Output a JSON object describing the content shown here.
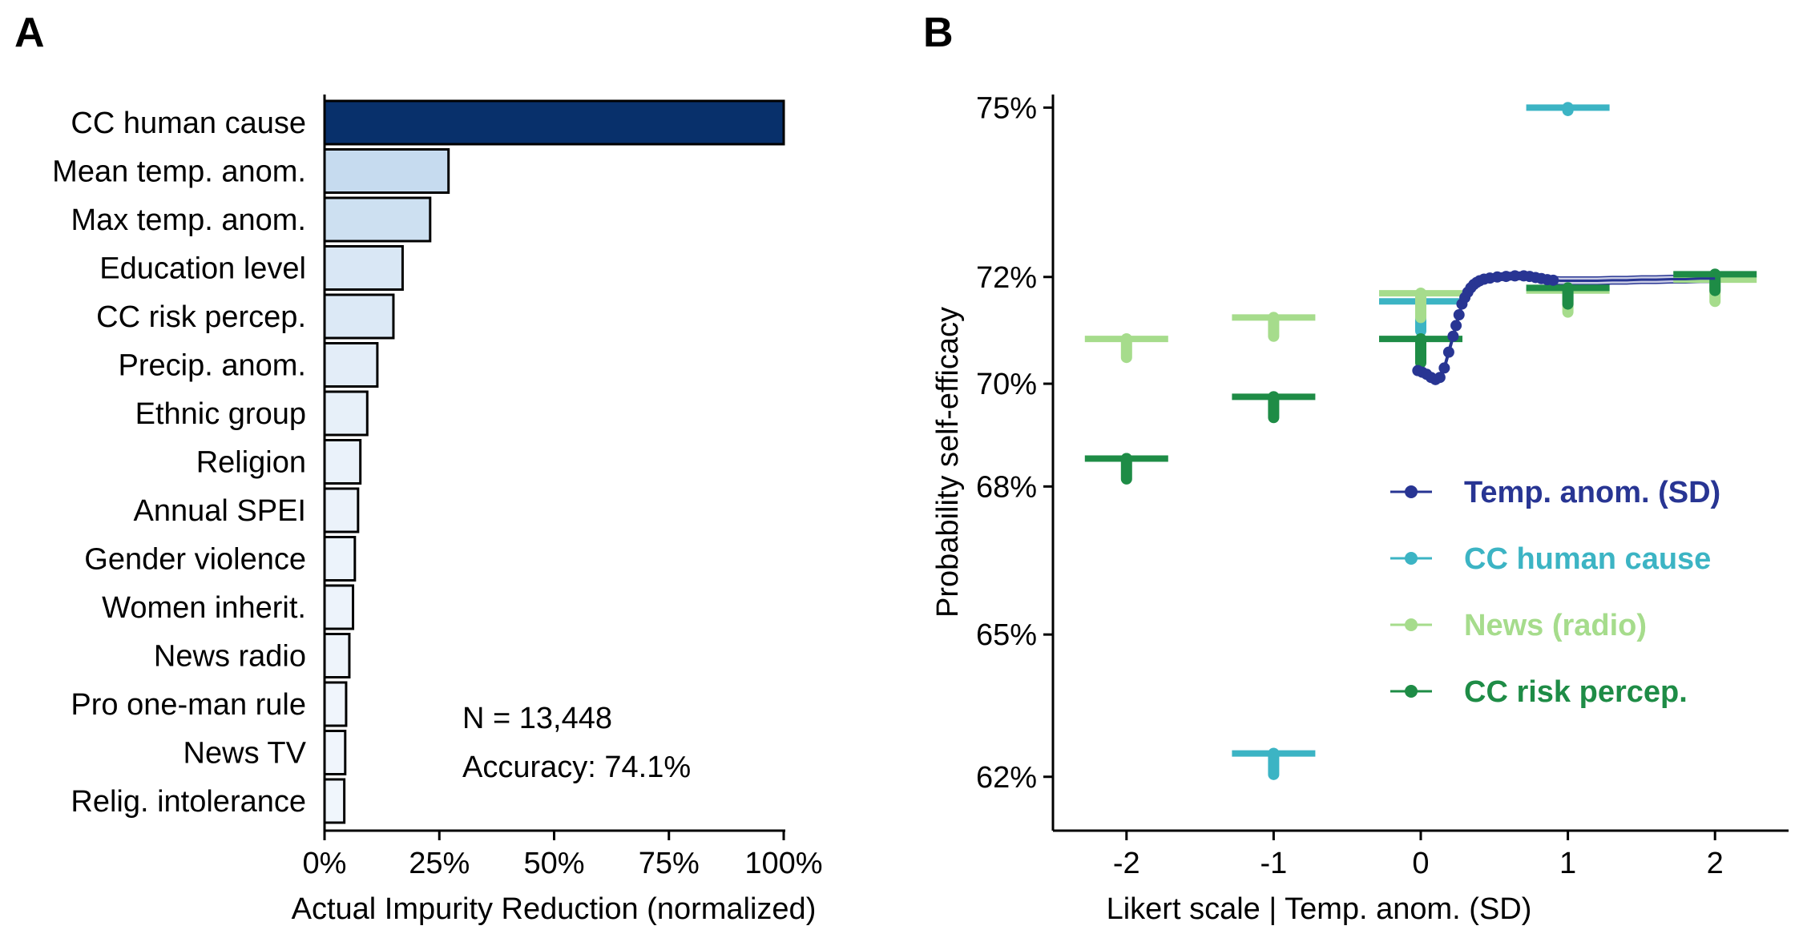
{
  "panels": {
    "a_label": "A",
    "b_label": "B"
  },
  "chart_data": [
    {
      "type": "bar",
      "orientation": "horizontal",
      "categories": [
        "CC human cause",
        "Mean temp. anom.",
        "Max temp. anom.",
        "Education level",
        "CC risk percep.",
        "Precip. anom.",
        "Ethnic group",
        "Religion",
        "Annual SPEI",
        "Gender violence",
        "Women inherit.",
        "News radio",
        "Pro one-man rule",
        "News TV",
        "Relig. intolerance"
      ],
      "values": [
        100,
        27,
        23,
        17,
        15,
        11.5,
        9.3,
        7.8,
        7.3,
        6.6,
        6.2,
        5.4,
        4.7,
        4.5,
        4.3
      ],
      "xlim": [
        0,
        100
      ],
      "xticks": [
        "0%",
        "25%",
        "50%",
        "75%",
        "100%"
      ],
      "xlabel": "Actual Impurity Reduction (normalized)",
      "ylabel": "",
      "annotations": [
        "N = 13,448",
        "Accuracy: 74.1%"
      ],
      "colors": {
        "max": "#08306b",
        "high": "#c6dbef",
        "low": "#f1f6fc",
        "edge": "#000000"
      }
    },
    {
      "type": "scatter",
      "xlabel": "Likert scale | Temp. anom. (SD)",
      "ylabel": "Probability self-efficacy",
      "xlim": [
        -2.5,
        2.5
      ],
      "ylim": [
        61.6,
        75.1
      ],
      "xticks": [
        "-2",
        "-1",
        "0",
        "1",
        "2"
      ],
      "yticks": [
        "62%",
        "65%",
        "68%",
        "70%",
        "72%",
        "75%"
      ],
      "legend_position": "right",
      "series": [
        {
          "name": "Temp. anom. (SD)",
          "color": "#283593",
          "kind": "line",
          "x": [
            -0.02,
            0.01,
            0.04,
            0.07,
            0.1,
            0.13,
            0.16,
            0.19,
            0.22,
            0.24,
            0.26,
            0.28,
            0.3,
            0.32,
            0.34,
            0.36,
            0.38,
            0.4,
            0.43,
            0.47,
            0.52,
            0.58,
            0.64,
            0.7,
            0.74,
            0.78,
            0.82,
            0.86,
            0.9,
            0.95,
            1.0,
            1.05,
            1.1,
            1.2,
            1.3,
            1.4,
            1.5,
            1.6,
            1.7,
            1.8,
            1.9,
            2.0
          ],
          "y": [
            70.25,
            70.22,
            70.18,
            70.12,
            70.08,
            70.12,
            70.3,
            70.6,
            70.9,
            71.1,
            71.3,
            71.5,
            71.62,
            71.72,
            71.8,
            71.86,
            71.9,
            71.93,
            71.96,
            71.98,
            72.0,
            72.01,
            72.02,
            72.02,
            72.01,
            71.99,
            71.97,
            71.95,
            71.94,
            71.93,
            71.93,
            71.93,
            71.93,
            71.93,
            71.94,
            71.94,
            71.95,
            71.95,
            71.96,
            71.96,
            71.97,
            71.97
          ],
          "band_upper": [
            70.32,
            70.29,
            70.25,
            70.19,
            70.15,
            70.19,
            70.37,
            70.67,
            70.97,
            71.17,
            71.37,
            71.57,
            71.69,
            71.79,
            71.87,
            71.93,
            71.97,
            72.0,
            72.03,
            72.05,
            72.07,
            72.08,
            72.09,
            72.09,
            72.08,
            72.06,
            72.04,
            72.02,
            72.01,
            72.0,
            72.0,
            72.0,
            72.0,
            72.0,
            72.01,
            72.01,
            72.02,
            72.02,
            72.03,
            72.03,
            72.04,
            72.04
          ],
          "band_lower": [
            70.18,
            70.15,
            70.11,
            70.05,
            70.01,
            70.05,
            70.23,
            70.53,
            70.83,
            71.03,
            71.23,
            71.43,
            71.55,
            71.65,
            71.73,
            71.79,
            71.83,
            71.86,
            71.89,
            71.91,
            71.93,
            71.94,
            71.95,
            71.95,
            71.94,
            71.92,
            71.9,
            71.88,
            71.87,
            71.86,
            71.86,
            71.86,
            71.86,
            71.86,
            71.87,
            71.87,
            71.88,
            71.88,
            71.89,
            71.89,
            71.9,
            71.9
          ]
        },
        {
          "name": "CC human cause",
          "color": "#3cb4c4",
          "kind": "errorbar",
          "x": [
            -1,
            0,
            1
          ],
          "y": [
            62.5,
            71.55,
            75.0
          ],
          "spread": [
            0.45,
            0.55,
            0.05
          ]
        },
        {
          "name": "News (radio)",
          "color": "#a6dc8c",
          "kind": "errorbar",
          "x": [
            -2,
            -1,
            0,
            1,
            2
          ],
          "y": [
            70.85,
            71.25,
            71.7,
            71.75,
            71.95
          ],
          "spread": [
            0.35,
            0.35,
            0.45,
            0.4,
            0.4
          ]
        },
        {
          "name": "CC risk percep.",
          "color": "#1e8c46",
          "kind": "errorbar",
          "x": [
            -2,
            -1,
            0,
            1,
            2
          ],
          "y": [
            68.55,
            69.75,
            70.85,
            71.8,
            72.05
          ],
          "spread": [
            0.4,
            0.4,
            0.45,
            0.3,
            0.3
          ]
        }
      ]
    }
  ]
}
